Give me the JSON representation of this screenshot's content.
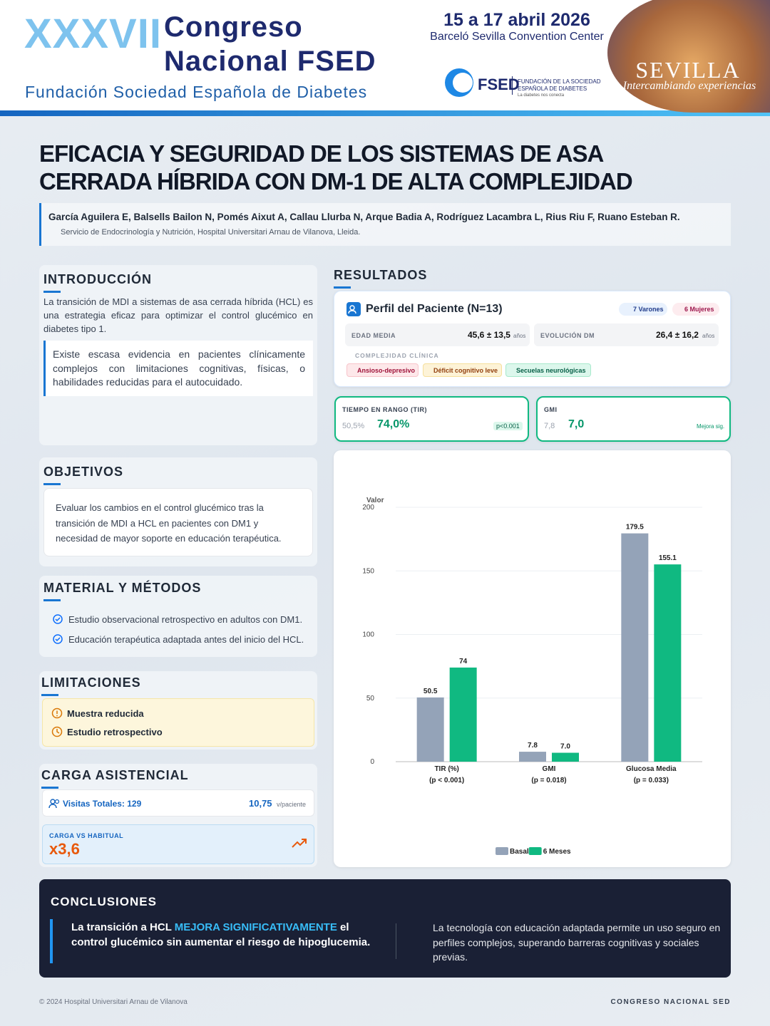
{
  "header": {
    "edition": "XXXVII",
    "name_line1": "Congreso",
    "name_line2": "Nacional FSED",
    "organization": "Fundación Sociedad Española de Diabetes",
    "dates": "15 a 17 abril 2026",
    "venue": "Barceló Sevilla Convention Center",
    "logo": "FSED",
    "logo_sub1": "FUNDACIÓN DE LA SOCIEDAD",
    "logo_sub2": "ESPAÑOLA DE DIABETES",
    "logo_tagline": "La diabetes nos conecta",
    "city": "SEVILLA",
    "city_tagline": "Intercambiando experiencias"
  },
  "title_lines": [
    "EFICACIA Y SEGURIDAD DE LOS SISTEMAS DE ASA",
    "CERRADA HÍBRIDA CON DM-1 DE ALTA COMPLEJIDAD"
  ],
  "authors": "García Aguilera E, Balsells Bailon N, Pomés Aixut A, Callau Llurba N, Arque Badia A, Rodríguez Lacambra L, Rius Riu F, Ruano Esteban R.",
  "affiliation": "Servicio de Endocrinología y Nutrición, Hospital Universitari Arnau de Vilanova, Lleida.",
  "introduccion": {
    "heading": "INTRODUCCIÓN",
    "text": "La transición de MDI a sistemas de asa cerrada híbrida (HCL) es una estrategia eficaz para optimizar el control glucémico en diabetes tipo 1.",
    "highlight": "Existe escasa evidencia en pacientes clínicamente complejos con limitaciones cognitivas, físicas, o habilidades reducidas para el autocuidado."
  },
  "objetivos": {
    "heading": "OBJETIVOS",
    "text": "Evaluar los cambios en el control glucémico tras la transición de MDI a HCL en pacientes con DM1 y necesidad de mayor soporte en educación terapéutica."
  },
  "metodos": {
    "heading": "MATERIAL Y MÉTODOS",
    "items": [
      "Estudio observacional retrospectivo en adultos con DM1.",
      "Educación terapéutica adaptada antes del inicio del HCL."
    ]
  },
  "limitaciones": {
    "heading": "LIMITACIONES",
    "items": [
      "Muestra reducida",
      "Estudio retrospectivo"
    ]
  },
  "carga": {
    "heading": "CARGA ASISTENCIAL",
    "visits": "Visitas Totales: 129",
    "per_patient": "10,75",
    "per_patient_unit": "v/paciente",
    "ratio_label": "CARGA VS HABITUAL",
    "ratio": "x3,6"
  },
  "resultados": {
    "heading": "RESULTADOS",
    "profile_title": "Perfil del Paciente (N=13)",
    "men": "7 Varones",
    "women": "6 Mujeres",
    "age_label": "EDAD MEDIA",
    "age_value": "45,6 ± 13,5",
    "age_unit": "años",
    "dm_label": "EVOLUCIÓN DM",
    "dm_value": "26,4 ± 16,2",
    "dm_unit": "años",
    "complexity_label": "COMPLEJIDAD CLÍNICA",
    "tags": [
      "Ansioso-depresivo",
      "Déficit cognitivo leve",
      "Secuelas neurológicas"
    ],
    "tir_label": "TIEMPO EN RANGO (TIR)",
    "tir_before": "50,5%",
    "tir_after": "74,0%",
    "tir_p": "p<0.001",
    "gmi_label": "GMI",
    "gmi_before": "7,8",
    "gmi_after": "7,0",
    "gmi_note": "Mejora sig."
  },
  "chart_data": {
    "type": "bar",
    "y_label": "Valor",
    "categories": [
      "TIR (%)",
      "GMI",
      "Glucosa Media"
    ],
    "category_notes": [
      "(p < 0.001)",
      "(p = 0.018)",
      "(p = 0.033)"
    ],
    "series": [
      {
        "name": "Basal",
        "color": "#94a3b8",
        "values": [
          50.5,
          7.8,
          179.5
        ]
      },
      {
        "name": "6 Meses",
        "color": "#10b981",
        "values": [
          74,
          7.0,
          155.1
        ],
        "value_labels": [
          "74",
          "7.0",
          "155.1"
        ]
      }
    ],
    "ylim": [
      0,
      200
    ],
    "yticks": [
      0,
      50,
      100,
      150,
      200
    ],
    "grid": true
  },
  "conclusiones": {
    "heading": "CONCLUSIONES",
    "main_start": "La transición a HCL ",
    "main_highlight": "MEJORA SIGNIFICATIVAMENTE",
    "main_end": " el control glucémico sin aumentar el riesgo de hipoglucemia.",
    "secondary": "La tecnología con educación adaptada permite un uso seguro en perfiles complejos, superando barreras cognitivas y sociales previas."
  },
  "footer": {
    "copyright": "© 2024 Hospital Universitari Arnau de Vilanova",
    "event": "CONGRESO NACIONAL SED"
  }
}
